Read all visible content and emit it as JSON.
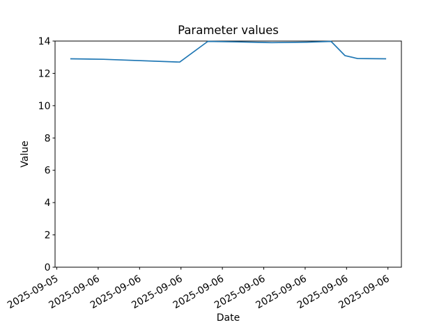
{
  "chart_data": {
    "type": "line",
    "title": "Parameter values",
    "xlabel": "Date",
    "ylabel": "Value",
    "ylim": [
      0,
      14
    ],
    "yticks": [
      0,
      2,
      4,
      6,
      8,
      10,
      12,
      14
    ],
    "xtick_labels": [
      "2025-09-05",
      "2025-09-06",
      "2025-09-06",
      "2025-09-06",
      "2025-09-06",
      "2025-09-06",
      "2025-09-06",
      "2025-09-06",
      "2025-09-06"
    ],
    "grid": false,
    "legend_position": "none",
    "line_color": "#1f77b4",
    "axis_color": "#000000",
    "background_color": "#ffffff",
    "series": [
      {
        "points": [
          {
            "x_frac": 0.044,
            "value": 12.9
          },
          {
            "x_frac": 0.139,
            "value": 12.87
          },
          {
            "x_frac": 0.36,
            "value": 12.7
          },
          {
            "x_frac": 0.441,
            "value": 13.98
          },
          {
            "x_frac": 0.525,
            "value": 13.95
          },
          {
            "x_frac": 0.626,
            "value": 13.9
          },
          {
            "x_frac": 0.726,
            "value": 13.93
          },
          {
            "x_frac": 0.797,
            "value": 13.98
          },
          {
            "x_frac": 0.837,
            "value": 13.1
          },
          {
            "x_frac": 0.873,
            "value": 12.92
          },
          {
            "x_frac": 0.956,
            "value": 12.9
          }
        ]
      }
    ]
  }
}
